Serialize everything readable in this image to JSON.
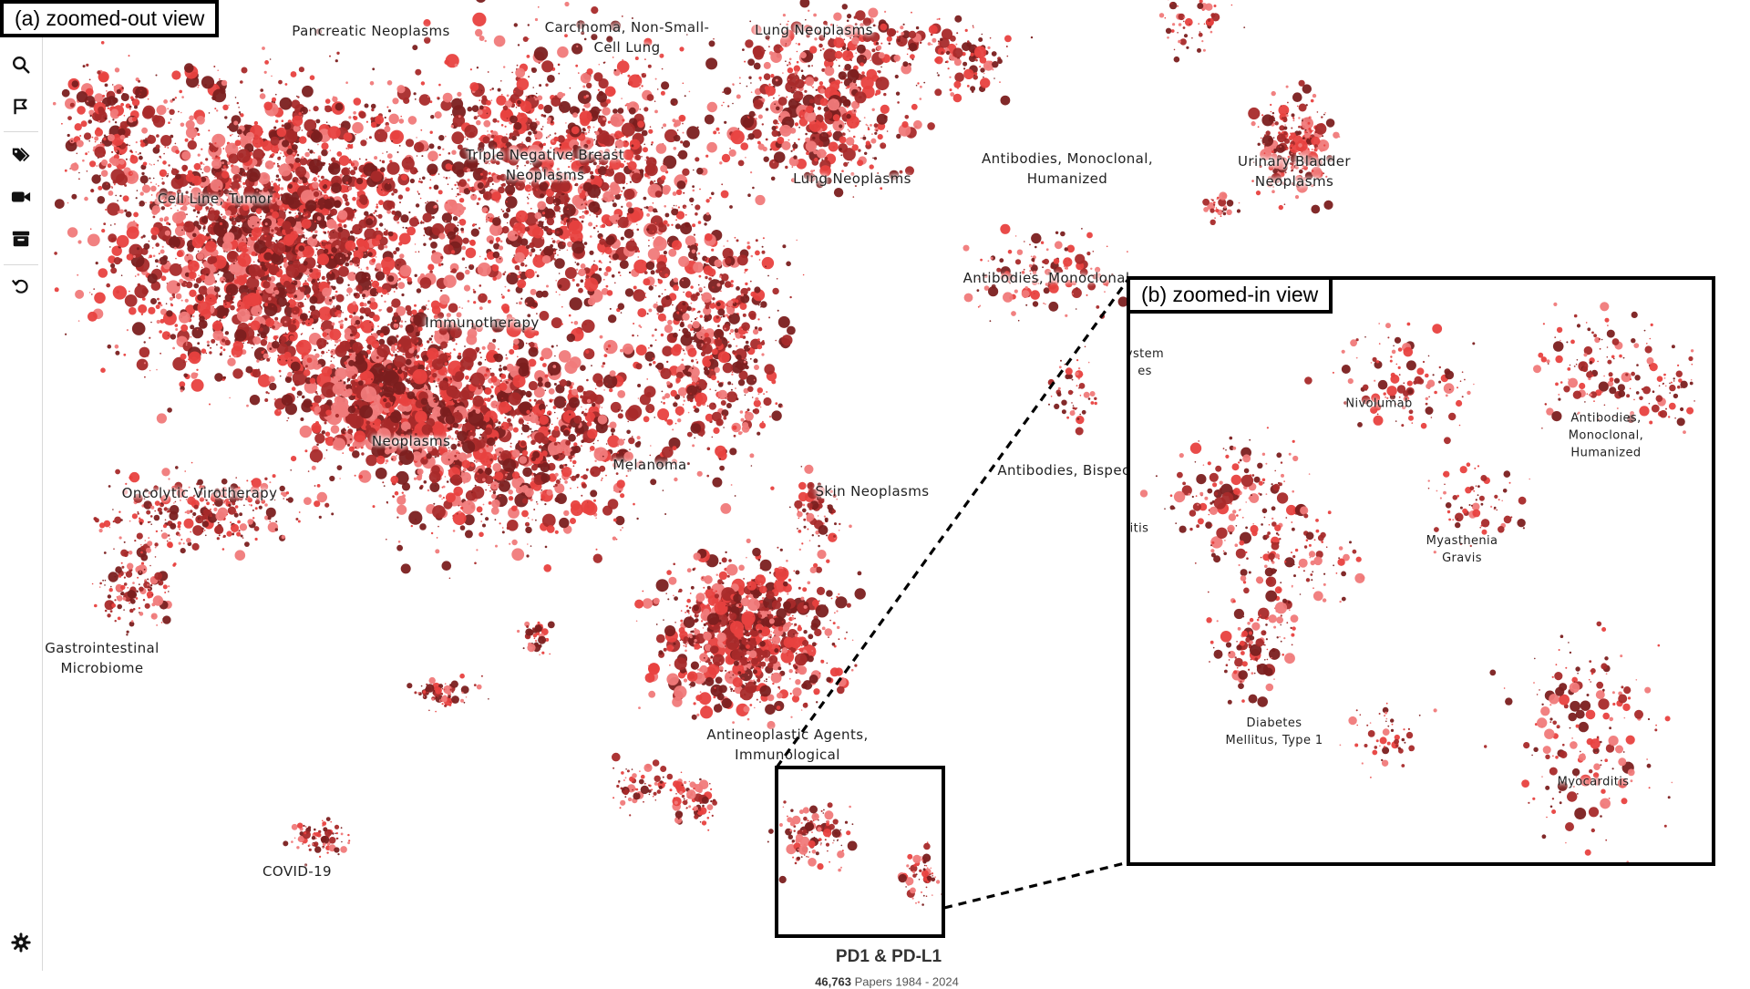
{
  "panels": {
    "zoomed_out_label": "(a) zoomed-out view",
    "zoomed_in_label": "(b) zoomed-in view"
  },
  "toolbar": {
    "icons": [
      "search-icon",
      "flag-icon",
      "tags-icon",
      "video-camera-icon",
      "archive-icon",
      "undo-icon",
      "gear-icon"
    ]
  },
  "map": {
    "topic": "PD1 & PD-L1",
    "paper_count": "46,763",
    "papers_word": "Papers",
    "years": "1984 - 2024",
    "point_colors": [
      "#7b1f1f",
      "#e8413f",
      "#f07a7a",
      "#a82a2a"
    ],
    "labels": [
      {
        "text": "Pancreatic Neoplasms"
      },
      {
        "text": "Carcinoma, Non-Small-\nCell Lung"
      },
      {
        "text": "Lung Neoplasms"
      },
      {
        "text": "Triple Negative Breast\nNeoplasms"
      },
      {
        "text": "Lung Neoplasms"
      },
      {
        "text": "Antibodies, Monoclonal,\nHumanized"
      },
      {
        "text": "Urinary Bladder\nNeoplasms"
      },
      {
        "text": "Cell Line, Tumor"
      },
      {
        "text": "Antibodies, Monoclonal"
      },
      {
        "text": "Immunotherapy"
      },
      {
        "text": "Neoplasms"
      },
      {
        "text": "Melanoma"
      },
      {
        "text": "Antibodies, Bispec"
      },
      {
        "text": "Oncolytic Virotherapy"
      },
      {
        "text": "Skin Neoplasms"
      },
      {
        "text": "Gastrointestinal\nMicrobiome"
      },
      {
        "text": "Antineoplastic Agents,\nImmunological"
      },
      {
        "text": "COVID-19"
      }
    ]
  },
  "inset": {
    "labels": [
      {
        "text": "ystem\nes"
      },
      {
        "text": "Nivolumab"
      },
      {
        "text": "Antibodies,\nMonoclonal,\nHumanized"
      },
      {
        "text": "itis"
      },
      {
        "text": "Myasthenia\nGravis"
      },
      {
        "text": "Diabetes\nMellitus, Type 1"
      },
      {
        "text": "Myocarditis"
      }
    ]
  }
}
